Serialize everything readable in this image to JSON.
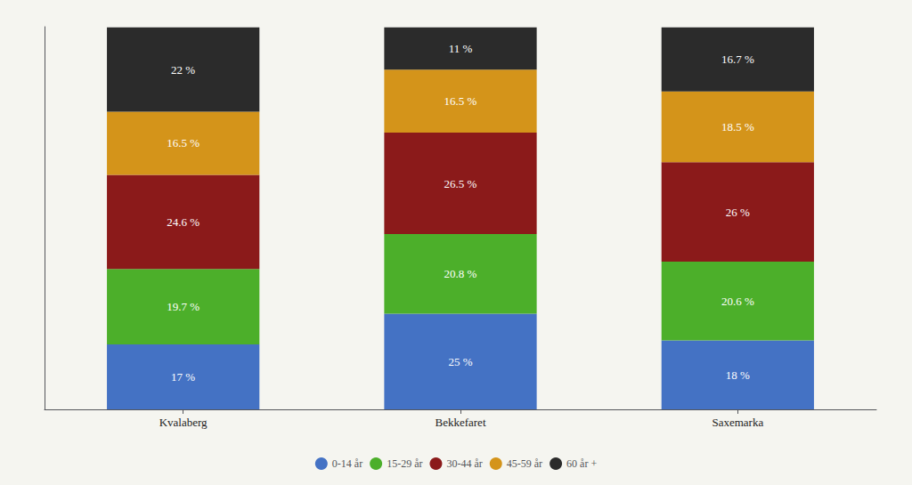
{
  "chart_data": {
    "type": "bar",
    "stacked": true,
    "categories": [
      "Kvalaberg",
      "Bekkefaret",
      "Saxemarka"
    ],
    "series": [
      {
        "name": "0-14 år",
        "color": "#4472C4",
        "values": [
          17.0,
          25.0,
          18.0
        ],
        "value_labels": [
          "17 %",
          "25 %",
          "18 %"
        ]
      },
      {
        "name": "15-29 år",
        "color": "#4CAF2A",
        "values": [
          19.7,
          20.8,
          20.6
        ],
        "value_labels": [
          "19.7 %",
          "20.8 %",
          "20.6 %"
        ]
      },
      {
        "name": "30-44 år",
        "color": "#8B1A1A",
        "values": [
          24.6,
          26.5,
          26.0
        ],
        "value_labels": [
          "24.6 %",
          "26.5 %",
          "26 %"
        ]
      },
      {
        "name": "45-59 år",
        "color": "#D4941A",
        "values": [
          16.5,
          16.5,
          18.5
        ],
        "value_labels": [
          "16.5 %",
          "16.5 %",
          "18.5 %"
        ]
      },
      {
        "name": "60 år +",
        "color": "#2B2B2B",
        "values": [
          22.0,
          11.0,
          16.7
        ],
        "value_labels": [
          "22 %",
          "11 %",
          "16.7 %"
        ]
      }
    ],
    "ylim": [
      0,
      100
    ],
    "tick_labels": "x",
    "grid": false,
    "legend": "bottom",
    "data_labels": true
  }
}
